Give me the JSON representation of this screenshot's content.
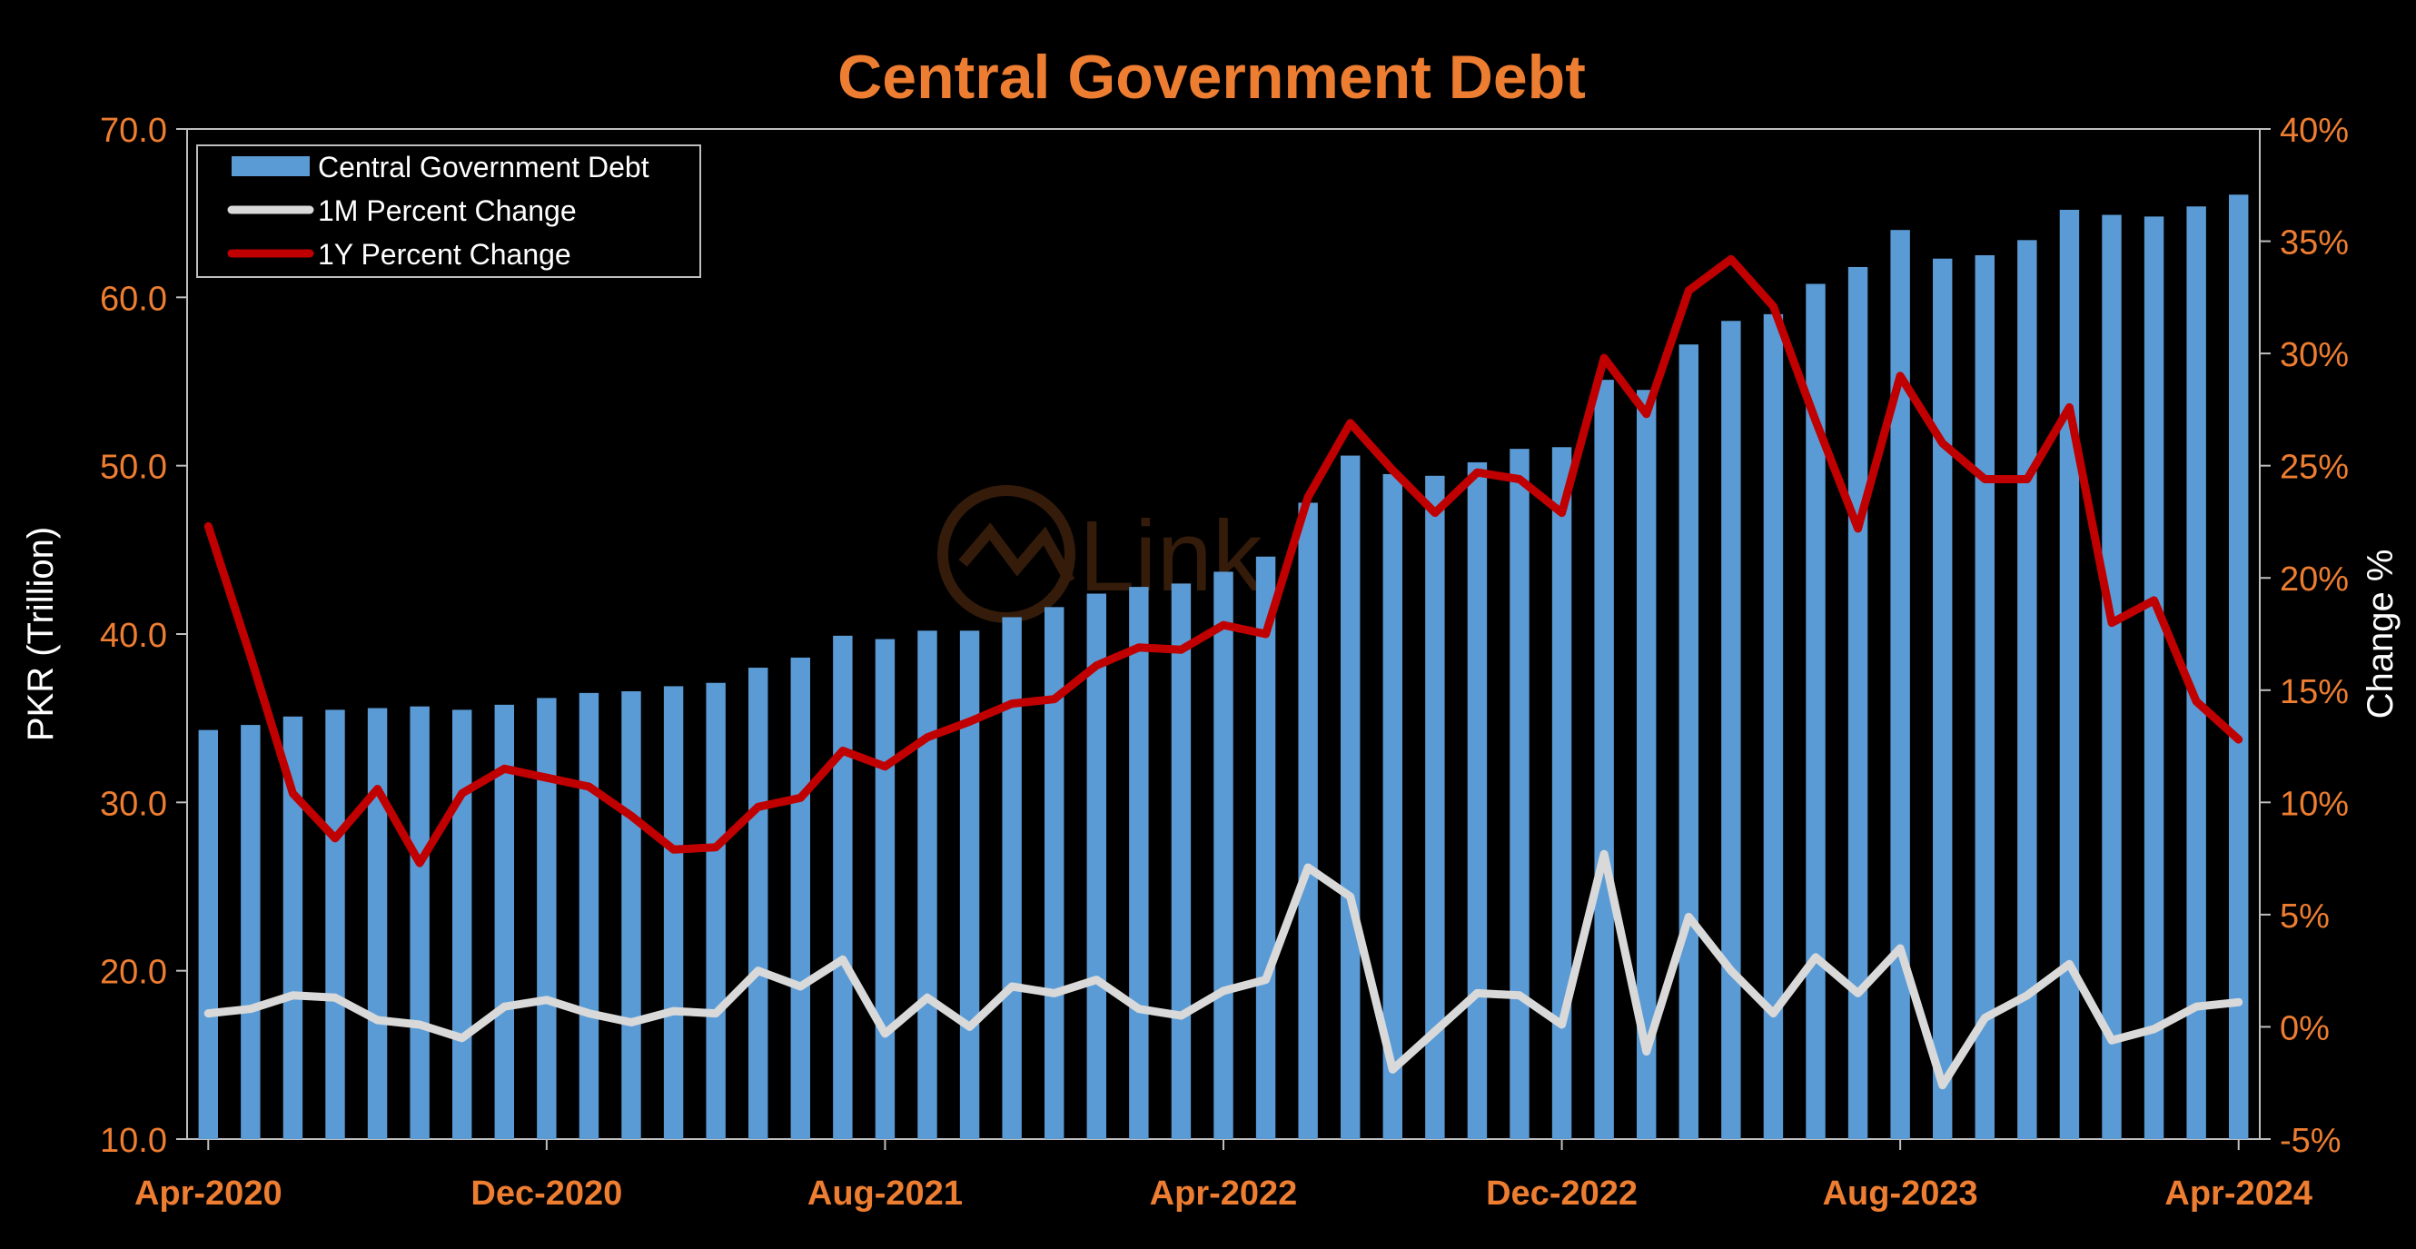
{
  "chart_data": {
    "type": "bar",
    "title": "Central Government Debt",
    "ylabel": "PKR (Trillion)",
    "y2label": "Change %",
    "ylim": [
      10,
      70
    ],
    "y2lim": [
      -5,
      40
    ],
    "y_ticks": [
      "10.0",
      "20.0",
      "30.0",
      "40.0",
      "50.0",
      "60.0",
      "70.0"
    ],
    "y2_ticks": [
      "-5%",
      "0%",
      "5%",
      "10%",
      "15%",
      "20%",
      "25%",
      "30%",
      "35%",
      "40%"
    ],
    "x_tick_labels": [
      "Apr-2020",
      "Dec-2020",
      "Aug-2021",
      "Apr-2022",
      "Dec-2022",
      "Aug-2023",
      "Apr-2024"
    ],
    "x_tick_indices": [
      0,
      8,
      16,
      24,
      32,
      40,
      48
    ],
    "legend_position": "top-left",
    "watermark": "Link",
    "categories": [
      "Apr-2020",
      "May-2020",
      "Jun-2020",
      "Jul-2020",
      "Aug-2020",
      "Sep-2020",
      "Oct-2020",
      "Nov-2020",
      "Dec-2020",
      "Jan-2021",
      "Feb-2021",
      "Mar-2021",
      "Apr-2021",
      "May-2021",
      "Jun-2021",
      "Jul-2021",
      "Aug-2021",
      "Sep-2021",
      "Oct-2021",
      "Nov-2021",
      "Dec-2021",
      "Jan-2022",
      "Feb-2022",
      "Mar-2022",
      "Apr-2022",
      "May-2022",
      "Jun-2022",
      "Jul-2022",
      "Aug-2022",
      "Sep-2022",
      "Oct-2022",
      "Nov-2022",
      "Dec-2022",
      "Jan-2023",
      "Feb-2023",
      "Mar-2023",
      "Apr-2023",
      "May-2023",
      "Jun-2023",
      "Jul-2023",
      "Aug-2023",
      "Sep-2023",
      "Oct-2023",
      "Nov-2023",
      "Dec-2023",
      "Jan-2024",
      "Feb-2024",
      "Mar-2024",
      "Apr-2024"
    ],
    "series": [
      {
        "name": "Central Government Debt",
        "axis": "left",
        "kind": "bar",
        "color": "#5b9bd5",
        "values": [
          34.3,
          34.6,
          35.1,
          35.5,
          35.6,
          35.7,
          35.5,
          35.8,
          36.2,
          36.5,
          36.6,
          36.9,
          37.1,
          38.0,
          38.6,
          39.9,
          39.7,
          40.2,
          40.2,
          41.0,
          41.6,
          42.4,
          42.8,
          43.0,
          43.7,
          44.6,
          47.8,
          50.6,
          49.5,
          49.4,
          50.2,
          51.0,
          51.1,
          55.1,
          54.5,
          57.2,
          58.6,
          59.0,
          60.8,
          61.8,
          64.0,
          62.3,
          62.5,
          63.4,
          65.2,
          64.9,
          64.8,
          65.4,
          66.1
        ]
      },
      {
        "name": "1M Percent Change",
        "axis": "right",
        "kind": "line",
        "color": "#d9d9d9",
        "values": [
          0.6,
          0.8,
          1.4,
          1.3,
          0.3,
          0.1,
          -0.5,
          0.9,
          1.2,
          0.6,
          0.2,
          0.7,
          0.6,
          2.5,
          1.8,
          3.0,
          -0.3,
          1.3,
          0.0,
          1.8,
          1.5,
          2.1,
          0.8,
          0.5,
          1.6,
          2.1,
          7.1,
          5.8,
          -1.9,
          -0.2,
          1.5,
          1.4,
          0.1,
          7.7,
          -1.1,
          4.9,
          2.5,
          0.6,
          3.1,
          1.5,
          3.5,
          -2.6,
          0.4,
          1.4,
          2.8,
          -0.6,
          -0.1,
          0.9,
          1.1
        ]
      },
      {
        "name": "1Y Percent Change",
        "axis": "right",
        "kind": "line",
        "color": "#c00000",
        "values": [
          22.3,
          16.5,
          10.4,
          8.4,
          10.6,
          7.3,
          10.4,
          11.5,
          11.1,
          10.7,
          9.4,
          7.9,
          8.0,
          9.8,
          10.2,
          12.3,
          11.6,
          12.9,
          13.6,
          14.4,
          14.6,
          16.1,
          16.9,
          16.8,
          17.9,
          17.5,
          23.6,
          26.9,
          24.8,
          22.9,
          24.7,
          24.4,
          22.9,
          29.8,
          27.3,
          32.8,
          34.2,
          32.1,
          27.0,
          22.2,
          29.0,
          26.0,
          24.4,
          24.4,
          27.6,
          18.0,
          19.0,
          14.5,
          12.8
        ]
      }
    ]
  }
}
